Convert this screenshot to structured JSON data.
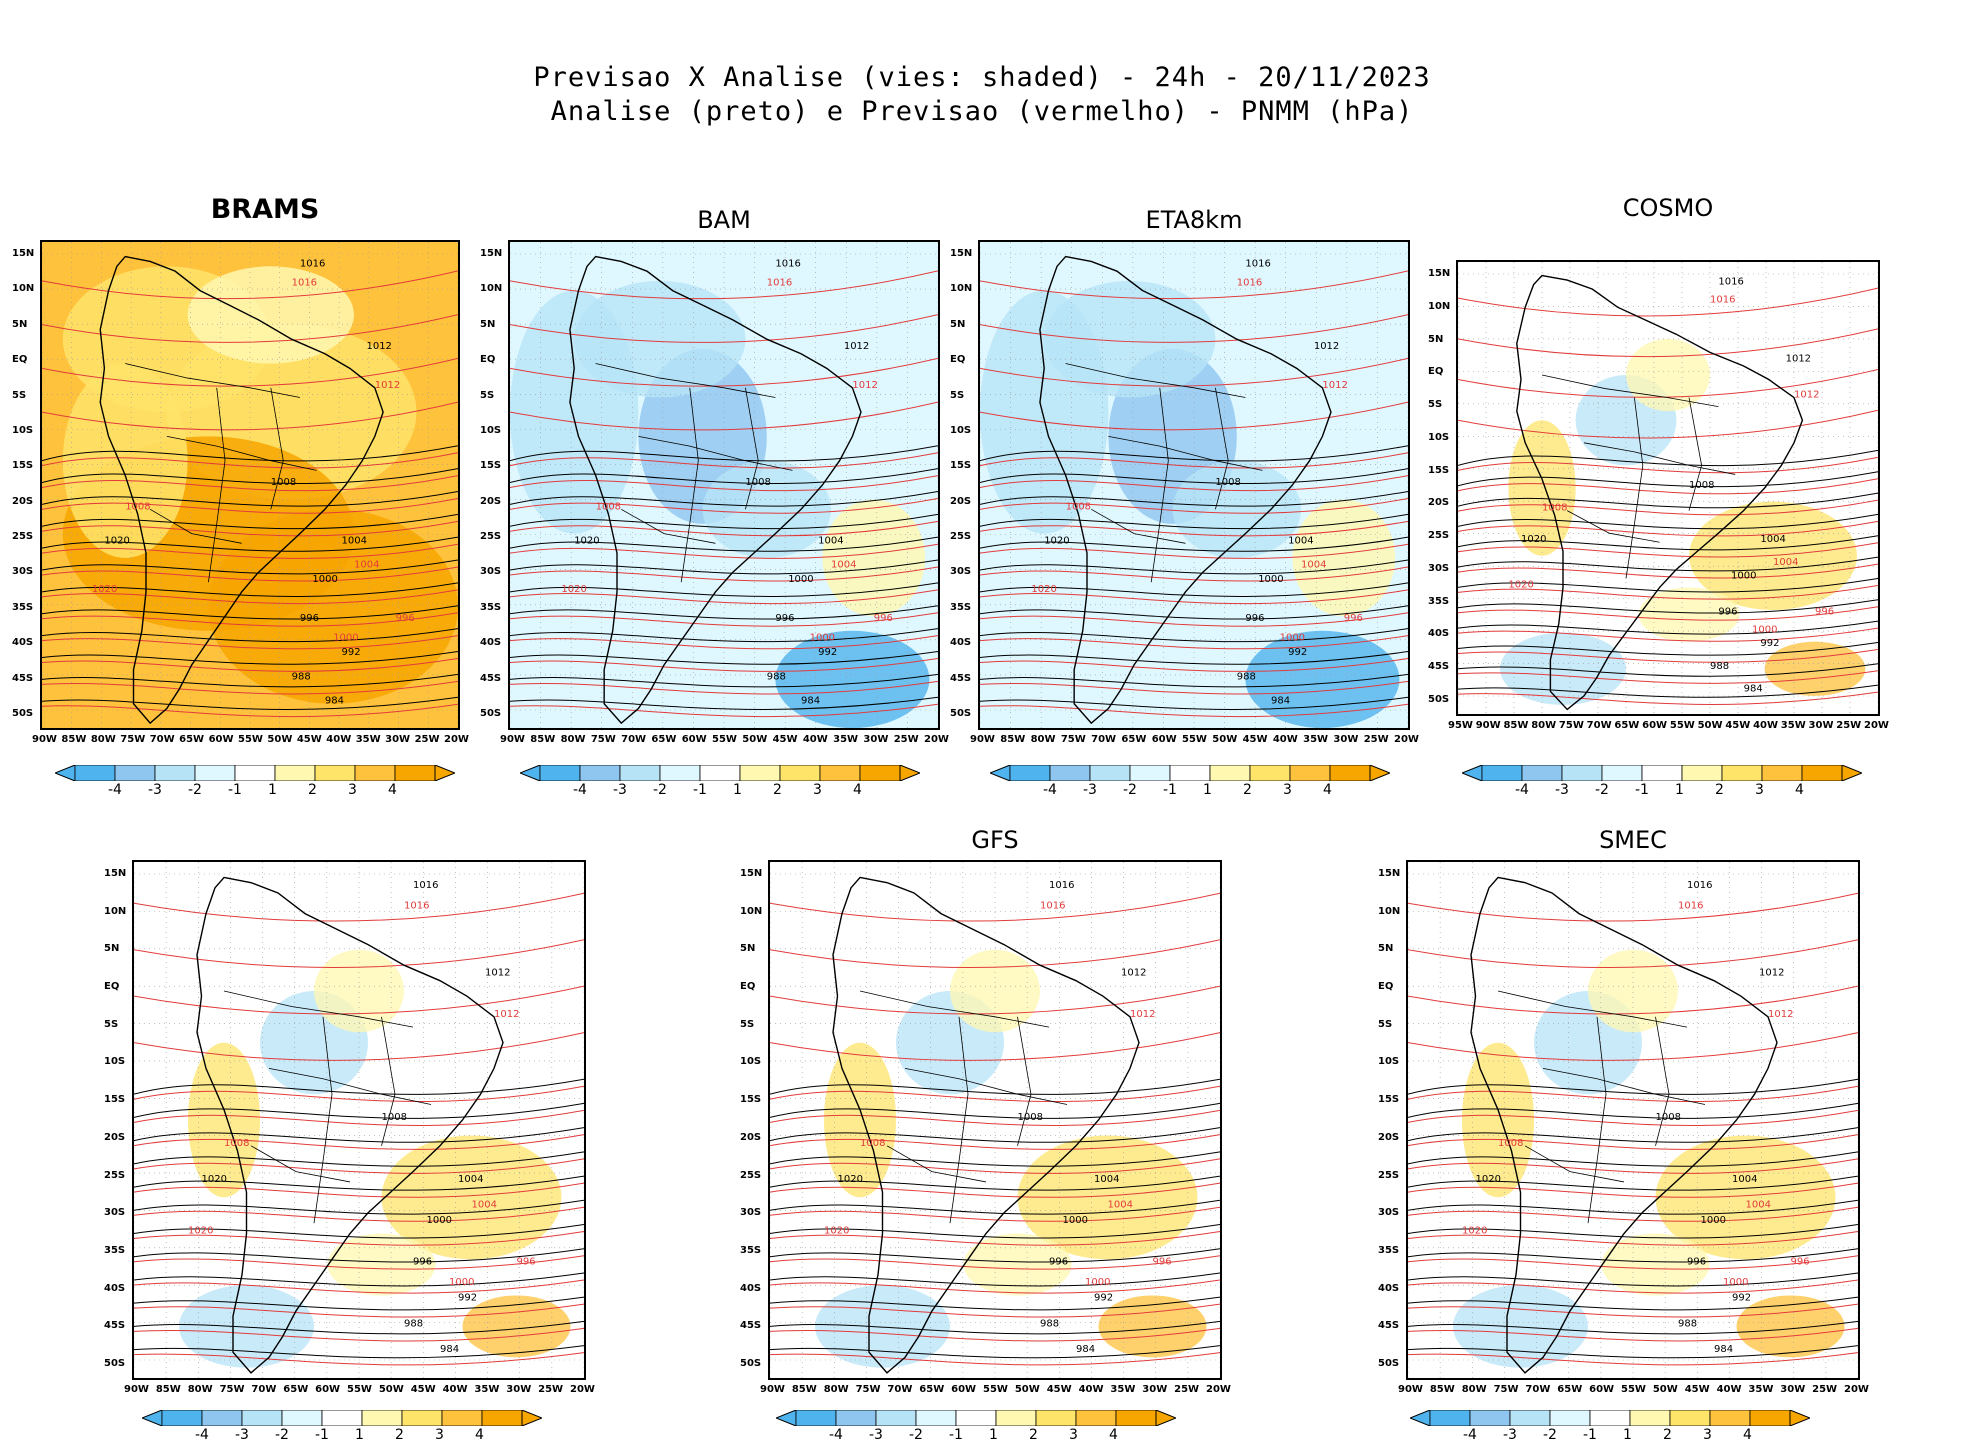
{
  "header": {
    "line1": "Previsao X Analise (vies: shaded) - 24h - 20/11/2023",
    "line2": "Analise (preto) e Previsao (vermelho) - PNMM (hPa)"
  },
  "panels": [
    {
      "name": "BRAMS",
      "label": "BRAMS",
      "style": "bold",
      "bias": "warm"
    },
    {
      "name": "BAM",
      "label": "BAM",
      "style": "normal",
      "bias": "cool"
    },
    {
      "name": "ETA8km",
      "label": "ETA8km",
      "style": "normal",
      "bias": "cool"
    },
    {
      "name": "COSMO",
      "label": "COSMO",
      "style": "normal",
      "bias": "mixed"
    },
    {
      "name": "unlabeled",
      "label": "",
      "style": "normal",
      "bias": "mixed"
    },
    {
      "name": "GFS",
      "label": "GFS",
      "style": "normal",
      "bias": "mixed"
    },
    {
      "name": "SMEC",
      "label": "SMEC",
      "style": "normal",
      "bias": "mixed"
    }
  ],
  "axes": {
    "lat_labels": [
      "15N",
      "10N",
      "5N",
      "EQ",
      "5S",
      "10S",
      "15S",
      "20S",
      "25S",
      "30S",
      "35S",
      "40S",
      "45S",
      "50S"
    ],
    "lon_labels": [
      "90W",
      "85W",
      "80W",
      "75W",
      "70W",
      "65W",
      "60W",
      "55W",
      "50W",
      "45W",
      "40W",
      "35W",
      "30W",
      "25W",
      "20W"
    ],
    "lon_labels_cosmo": [
      "95W",
      "90W",
      "85W",
      "80W",
      "75W",
      "70W",
      "65W",
      "60W",
      "55W",
      "50W",
      "45W",
      "40W",
      "35W",
      "30W",
      "25W",
      "20W"
    ]
  },
  "colorbar": {
    "labels": [
      "-4",
      "-3",
      "-2",
      "-1",
      "1",
      "2",
      "3",
      "4"
    ],
    "colors": [
      "#4fb3ee",
      "#8fc6f0",
      "#b7e3f7",
      "#dff7ff",
      "#ffffff",
      "#fff8b0",
      "#ffe46a",
      "#ffc23c",
      "#f7a600"
    ]
  },
  "contour_labels": {
    "analysis": [
      "1016",
      "1012",
      "1008",
      "1004",
      "1000",
      "996",
      "992",
      "988",
      "984",
      "1020"
    ],
    "forecast": [
      "1016",
      "1012",
      "1008",
      "1004",
      "1000",
      "996",
      "1020"
    ]
  },
  "colors": {
    "analysis": "#000000",
    "forecast": "#e23b3b",
    "land": "#000000"
  }
}
